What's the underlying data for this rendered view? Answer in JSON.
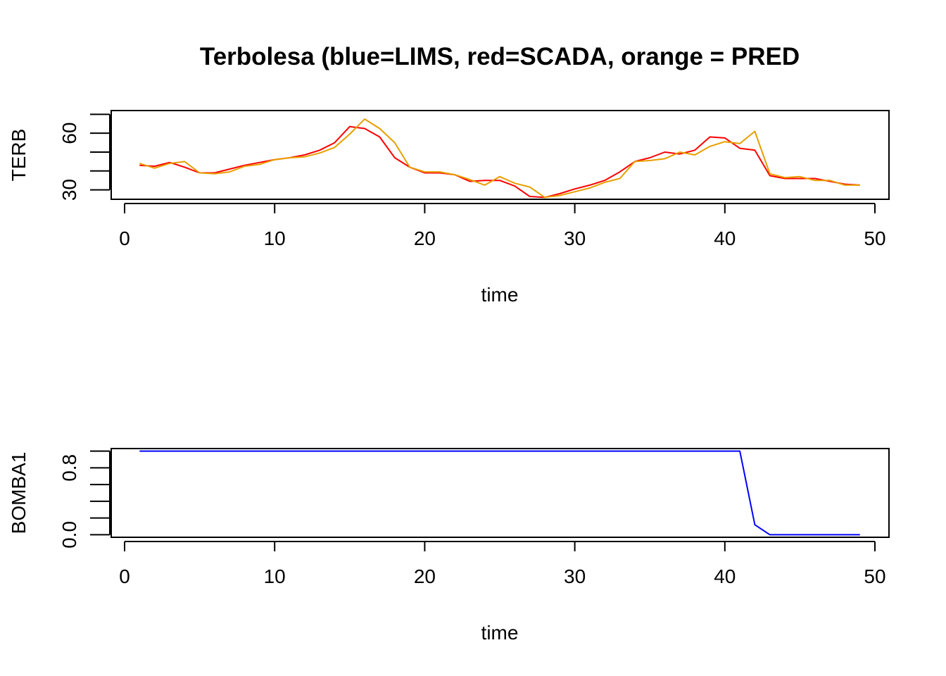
{
  "chart_data": [
    {
      "type": "line",
      "title": "Terbolesa (blue=LIMS, red=SCADA, orange = PRED",
      "xlabel": "time",
      "ylabel": "TERB",
      "xlim": [
        0,
        50
      ],
      "ylim": [
        25,
        72
      ],
      "x_ticks": [
        0,
        10,
        20,
        30,
        40,
        50
      ],
      "y_ticks": [
        30,
        40,
        50,
        60,
        70
      ],
      "y_tick_labels": [
        "30",
        "",
        "",
        "60",
        ""
      ],
      "x": [
        1,
        2,
        3,
        4,
        5,
        6,
        7,
        8,
        9,
        10,
        11,
        12,
        13,
        14,
        15,
        16,
        17,
        18,
        19,
        20,
        21,
        22,
        23,
        24,
        25,
        26,
        27,
        28,
        29,
        30,
        31,
        32,
        33,
        34,
        35,
        36,
        37,
        38,
        39,
        40,
        41,
        42,
        43,
        44,
        45,
        46,
        47,
        48,
        49
      ],
      "series": [
        {
          "name": "SCADA",
          "color": "#ff0000",
          "values": [
            43.0,
            42.5,
            44.5,
            42.0,
            39.0,
            39.0,
            41.0,
            43.0,
            44.5,
            46.0,
            47.0,
            48.5,
            51.0,
            55.0,
            63.5,
            62.5,
            58.0,
            47.0,
            42.0,
            39.0,
            39.0,
            38.0,
            34.5,
            35.0,
            35.0,
            32.0,
            26.5,
            26.0,
            28.0,
            30.5,
            32.5,
            35.0,
            39.5,
            45.0,
            47.0,
            50.0,
            49.0,
            51.0,
            58.0,
            57.5,
            52.0,
            51.0,
            37.5,
            36.0,
            36.0,
            36.0,
            34.5,
            33.0,
            32.5
          ]
        },
        {
          "name": "PRED",
          "color": "#e69f00",
          "values": [
            44.0,
            41.5,
            44.0,
            45.0,
            39.0,
            38.5,
            39.5,
            42.5,
            43.5,
            46.0,
            47.0,
            47.5,
            49.5,
            52.5,
            59.5,
            67.5,
            62.5,
            55.0,
            42.0,
            39.5,
            39.5,
            38.0,
            35.5,
            32.5,
            37.0,
            33.5,
            31.5,
            26.0,
            27.0,
            29.0,
            31.0,
            34.0,
            36.0,
            45.0,
            45.5,
            46.5,
            50.0,
            48.5,
            53.0,
            55.5,
            54.5,
            61.0,
            38.5,
            36.5,
            37.0,
            35.0,
            35.0,
            32.5,
            32.5
          ]
        }
      ]
    },
    {
      "type": "line",
      "title": "",
      "xlabel": "time",
      "ylabel": "BOMBA1",
      "xlim": [
        0,
        50
      ],
      "ylim": [
        -0.03,
        1.03
      ],
      "x_ticks": [
        0,
        10,
        20,
        30,
        40,
        50
      ],
      "y_ticks": [
        0.0,
        0.2,
        0.4,
        0.6,
        0.8,
        1.0
      ],
      "y_tick_labels": [
        "0.0",
        "",
        "",
        "",
        "0.8",
        ""
      ],
      "x": [
        1,
        2,
        3,
        4,
        5,
        6,
        7,
        8,
        9,
        10,
        11,
        12,
        13,
        14,
        15,
        16,
        17,
        18,
        19,
        20,
        21,
        22,
        23,
        24,
        25,
        26,
        27,
        28,
        29,
        30,
        31,
        32,
        33,
        34,
        35,
        36,
        37,
        38,
        39,
        40,
        41,
        42,
        43,
        44,
        45,
        46,
        47,
        48,
        49
      ],
      "series": [
        {
          "name": "LIMS",
          "color": "#0000ff",
          "values": [
            1,
            1,
            1,
            1,
            1,
            1,
            1,
            1,
            1,
            1,
            1,
            1,
            1,
            1,
            1,
            1,
            1,
            1,
            1,
            1,
            1,
            1,
            1,
            1,
            1,
            1,
            1,
            1,
            1,
            1,
            1,
            1,
            1,
            1,
            1,
            1,
            1,
            1,
            1,
            1,
            1,
            0.12,
            0,
            0,
            0,
            0,
            0,
            0,
            0
          ]
        }
      ]
    }
  ]
}
